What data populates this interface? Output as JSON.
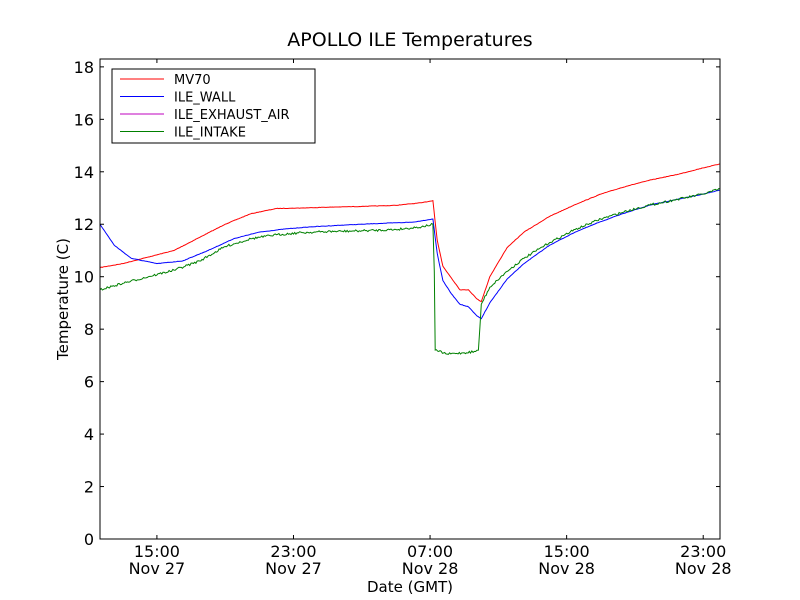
{
  "chart_data": {
    "type": "line",
    "title": "APOLLO ILE Temperatures",
    "xlabel": "Date (GMT)",
    "ylabel": "Temperature (C)",
    "ylim": [
      0,
      18.3
    ],
    "xlim": [
      "2011-11-27 11:40",
      "2011-11-28 23:59"
    ],
    "grid": false,
    "legend_position": "top-left",
    "y_ticks": [
      0,
      2,
      4,
      6,
      8,
      10,
      12,
      14,
      16,
      18
    ],
    "x_ticks": [
      {
        "time": "2011-11-27 15:00",
        "line1": "15:00",
        "line2": "Nov 27"
      },
      {
        "time": "2011-11-27 23:00",
        "line1": "23:00",
        "line2": "Nov 27"
      },
      {
        "time": "2011-11-28 07:00",
        "line1": "07:00",
        "line2": "Nov 28"
      },
      {
        "time": "2011-11-28 15:00",
        "line1": "15:00",
        "line2": "Nov 28"
      },
      {
        "time": "2011-11-28 23:00",
        "line1": "23:00",
        "line2": "Nov 28"
      }
    ],
    "series": [
      {
        "name": "MV70",
        "color": "#ff0000",
        "x": [
          "2011-11-27 11:40",
          "2011-11-27 13:00",
          "2011-11-27 14:30",
          "2011-11-27 16:00",
          "2011-11-27 17:30",
          "2011-11-27 19:00",
          "2011-11-27 20:30",
          "2011-11-27 22:00",
          "2011-11-27 23:30",
          "2011-11-28 01:00",
          "2011-11-28 03:00",
          "2011-11-28 05:00",
          "2011-11-28 06:30",
          "2011-11-28 07:10",
          "2011-11-28 07:25",
          "2011-11-28 07:45",
          "2011-11-28 08:15",
          "2011-11-28 08:45",
          "2011-11-28 09:15",
          "2011-11-28 09:45",
          "2011-11-28 10:00",
          "2011-11-28 10:30",
          "2011-11-28 11:30",
          "2011-11-28 12:30",
          "2011-11-28 14:00",
          "2011-11-28 15:30",
          "2011-11-28 17:00",
          "2011-11-28 18:30",
          "2011-11-28 20:00",
          "2011-11-28 21:30",
          "2011-11-28 23:00",
          "2011-11-28 23:59"
        ],
        "values": [
          10.35,
          10.5,
          10.75,
          11.0,
          11.5,
          12.0,
          12.4,
          12.6,
          12.62,
          12.65,
          12.68,
          12.72,
          12.82,
          12.9,
          11.4,
          10.4,
          9.95,
          9.5,
          9.5,
          9.15,
          9.05,
          10.0,
          11.1,
          11.7,
          12.3,
          12.75,
          13.15,
          13.45,
          13.7,
          13.9,
          14.15,
          14.3
        ]
      },
      {
        "name": "ILE_WALL",
        "color": "#0000ff",
        "x": [
          "2011-11-27 11:40",
          "2011-11-27 12:30",
          "2011-11-27 13:30",
          "2011-11-27 15:00",
          "2011-11-27 16:30",
          "2011-11-27 18:00",
          "2011-11-27 19:30",
          "2011-11-27 21:00",
          "2011-11-27 22:30",
          "2011-11-28 00:00",
          "2011-11-28 02:00",
          "2011-11-28 04:00",
          "2011-11-28 06:00",
          "2011-11-28 07:10",
          "2011-11-28 07:25",
          "2011-11-28 07:45",
          "2011-11-28 08:15",
          "2011-11-28 08:45",
          "2011-11-28 09:15",
          "2011-11-28 09:45",
          "2011-11-28 10:00",
          "2011-11-28 10:30",
          "2011-11-28 11:30",
          "2011-11-28 12:30",
          "2011-11-28 14:00",
          "2011-11-28 15:30",
          "2011-11-28 17:00",
          "2011-11-28 18:30",
          "2011-11-28 20:00",
          "2011-11-28 21:30",
          "2011-11-28 23:00",
          "2011-11-28 23:59"
        ],
        "values": [
          12.0,
          11.2,
          10.7,
          10.5,
          10.6,
          11.0,
          11.45,
          11.7,
          11.82,
          11.9,
          11.97,
          12.03,
          12.08,
          12.2,
          10.9,
          9.85,
          9.35,
          8.95,
          8.85,
          8.5,
          8.4,
          9.0,
          9.9,
          10.5,
          11.2,
          11.7,
          12.1,
          12.45,
          12.75,
          12.95,
          13.15,
          13.3
        ]
      },
      {
        "name": "ILE_EXHAUST_AIR",
        "color": "#bf00bf",
        "x": [],
        "values": []
      },
      {
        "name": "ILE_INTAKE",
        "color": "#008000",
        "x": [
          "2011-11-27 11:40",
          "2011-11-27 13:00",
          "2011-11-27 14:30",
          "2011-11-27 16:00",
          "2011-11-27 17:30",
          "2011-11-27 19:00",
          "2011-11-27 20:30",
          "2011-11-27 22:00",
          "2011-11-27 23:30",
          "2011-11-28 01:00",
          "2011-11-28 03:00",
          "2011-11-28 05:00",
          "2011-11-28 06:30",
          "2011-11-28 07:10",
          "2011-11-28 07:15",
          "2011-11-28 07:18",
          "2011-11-28 08:00",
          "2011-11-28 09:00",
          "2011-11-28 09:40",
          "2011-11-28 09:50",
          "2011-11-28 10:00",
          "2011-11-28 10:30",
          "2011-11-28 11:30",
          "2011-11-28 12:30",
          "2011-11-28 14:00",
          "2011-11-28 15:30",
          "2011-11-28 17:00",
          "2011-11-28 18:30",
          "2011-11-28 20:00",
          "2011-11-28 21:30",
          "2011-11-28 23:00",
          "2011-11-28 23:59"
        ],
        "values": [
          9.5,
          9.75,
          10.0,
          10.25,
          10.6,
          11.15,
          11.45,
          11.6,
          11.68,
          11.72,
          11.75,
          11.8,
          11.9,
          12.0,
          10.2,
          7.2,
          7.05,
          7.1,
          7.15,
          7.2,
          8.95,
          9.6,
          10.2,
          10.7,
          11.3,
          11.8,
          12.2,
          12.5,
          12.75,
          12.95,
          13.15,
          13.35
        ],
        "noisy": true
      }
    ]
  }
}
